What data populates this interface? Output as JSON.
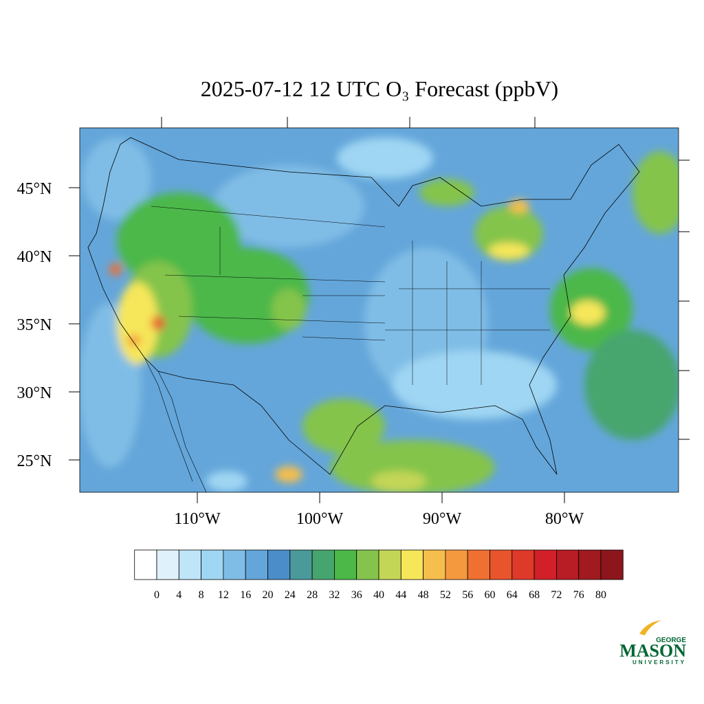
{
  "title": "2025-07-12 12 UTC O₃ Forecast (ppbV)",
  "map": {
    "lat_labels": [
      {
        "value": 45,
        "label": "45°N"
      },
      {
        "value": 40,
        "label": "40°N"
      },
      {
        "value": 35,
        "label": "35°N"
      },
      {
        "value": 30,
        "label": "30°N"
      },
      {
        "value": 25,
        "label": "25°N"
      }
    ],
    "lon_labels": [
      {
        "value": -110,
        "label": "110°W"
      },
      {
        "value": -100,
        "label": "100°W"
      },
      {
        "value": -90,
        "label": "90°W"
      },
      {
        "value": -80,
        "label": "80°W"
      }
    ]
  },
  "colorbar": {
    "levels": [
      0,
      4,
      8,
      12,
      16,
      20,
      24,
      28,
      32,
      36,
      40,
      44,
      48,
      52,
      56,
      60,
      64,
      68,
      72,
      76,
      80
    ],
    "colors": [
      "#ffffff",
      "#dff1fb",
      "#bfe5f8",
      "#9fd6f3",
      "#80bde6",
      "#64a6da",
      "#4b8dc8",
      "#4a9a9a",
      "#46a56e",
      "#4cb848",
      "#84c44c",
      "#c4d656",
      "#f6e65a",
      "#f6be4c",
      "#f5993e",
      "#f07032",
      "#e8542c",
      "#de3a2a",
      "#d22028",
      "#b81c24",
      "#a01a20",
      "#8c161c"
    ]
  },
  "logo": {
    "line1": "GEORGE",
    "line2": "MASON",
    "line3": "UNIVERSITY"
  }
}
